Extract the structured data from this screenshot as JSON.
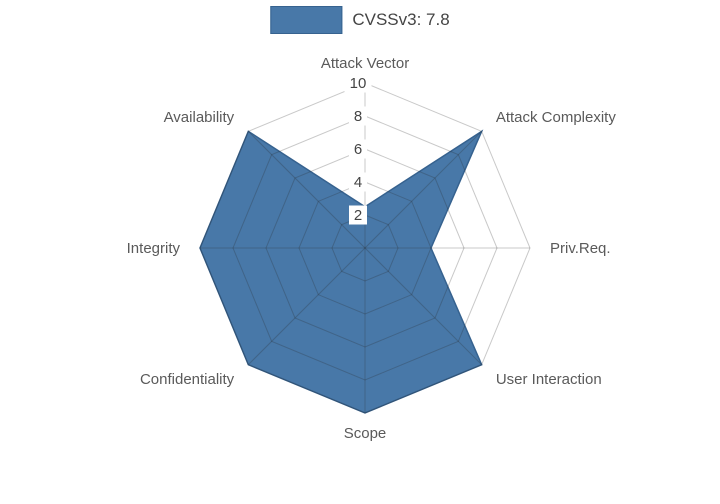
{
  "page": {
    "background": "#ffffff"
  },
  "legend": {
    "position": "top",
    "label": "CVSSv3: 7.8"
  },
  "chart_data": {
    "type": "radar",
    "title": "",
    "axes": [
      "Attack Vector",
      "Attack Complexity",
      "Priv.Req.",
      "User Interaction",
      "Scope",
      "Confidentiality",
      "Integrity",
      "Availability"
    ],
    "series": [
      {
        "name": "CVSSv3: 7.8",
        "color": "#4878a8",
        "edge_color": "#36628f",
        "values": [
          2.5,
          10,
          4,
          10,
          10,
          10,
          10,
          10
        ]
      }
    ],
    "radial_axis": {
      "ticks": [
        2,
        4,
        6,
        8,
        10
      ],
      "range": [
        0,
        10
      ],
      "tick_color": "#444444",
      "tick_background": "#ffffff"
    },
    "grid": {
      "shape": "polygon",
      "on": true,
      "color": "#cccccc"
    },
    "axis_label_color": "#5a5a5a",
    "legend_position": "top"
  }
}
